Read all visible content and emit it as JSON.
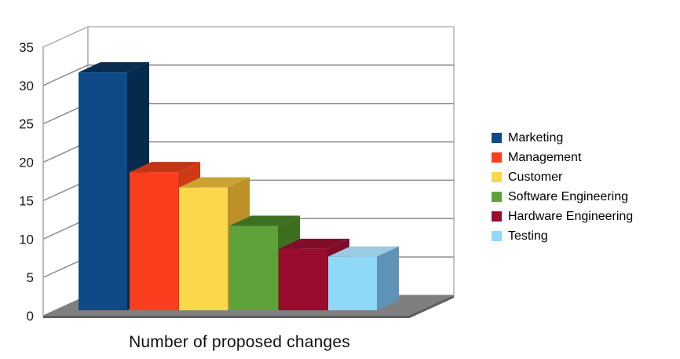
{
  "chart_data": {
    "type": "bar",
    "projection": "3d",
    "title": "",
    "xlabel": "Number of proposed changes",
    "ylabel": "",
    "categories": [
      "Marketing",
      "Management",
      "Customer",
      "Software Engineering",
      "Hardware Engineering",
      "Testing"
    ],
    "values": [
      31,
      18,
      16,
      11,
      8,
      7
    ],
    "ylim": [
      0,
      35
    ],
    "yticks": [
      0,
      5,
      10,
      15,
      20,
      25,
      30,
      35
    ],
    "grid": true,
    "legend_position": "right",
    "series_colors": [
      {
        "name": "Marketing",
        "front": "#0E4A88",
        "top": "#0B2D51",
        "side": "#042A4E"
      },
      {
        "name": "Management",
        "front": "#FB3E1D",
        "top": "#C33517",
        "side": "#CE3A13"
      },
      {
        "name": "Customer",
        "front": "#FAD74B",
        "top": "#C9A433",
        "side": "#BC9129"
      },
      {
        "name": "Software Engineering",
        "front": "#5FA23A",
        "top": "#3E7022",
        "side": "#3D6E20"
      },
      {
        "name": "Hardware Engineering",
        "front": "#9A0C2E",
        "top": "#850C28",
        "side": "#7E0D29"
      },
      {
        "name": "Testing",
        "front": "#8FD9F8",
        "top": "#9BCBE2",
        "side": "#5C93B6"
      }
    ],
    "wall_color": "#FFFFFF",
    "floor_color": "#7F7F7F",
    "floor_edge_color": "#5E5E5E",
    "grid_color": "#8C8C8C",
    "edge_color": "#A6A6A6",
    "tick_label_color": "#1A1A1A"
  }
}
